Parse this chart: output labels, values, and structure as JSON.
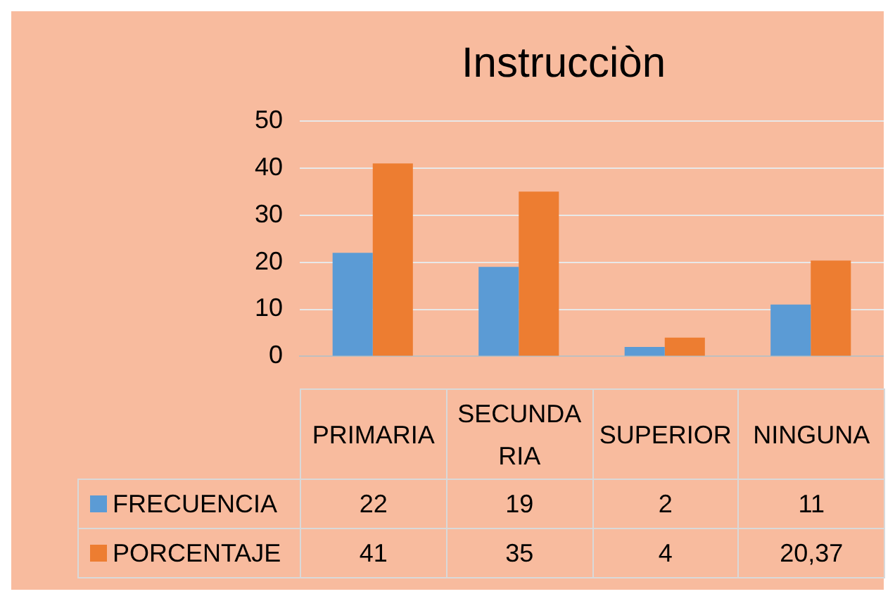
{
  "chart_data": {
    "type": "bar",
    "title": "Instrucciòn",
    "categories": [
      "PRIMARIA",
      "SECUNDARIA",
      "SUPERIOR",
      "NINGUNA"
    ],
    "series": [
      {
        "name": "FRECUENCIA",
        "color": "#5b9bd5",
        "values": [
          22,
          19,
          2,
          11
        ],
        "value_labels": [
          "22",
          "19",
          "2",
          "11"
        ]
      },
      {
        "name": "PORCENTAJE",
        "color": "#ed7d31",
        "values": [
          41,
          35,
          4,
          20.37
        ],
        "value_labels": [
          "41",
          "35",
          "4",
          "20,37"
        ]
      }
    ],
    "ylim": [
      0,
      50
    ],
    "yticks": [
      0,
      10,
      20,
      30,
      40,
      50
    ],
    "grid": "y",
    "legend": "bottom"
  }
}
